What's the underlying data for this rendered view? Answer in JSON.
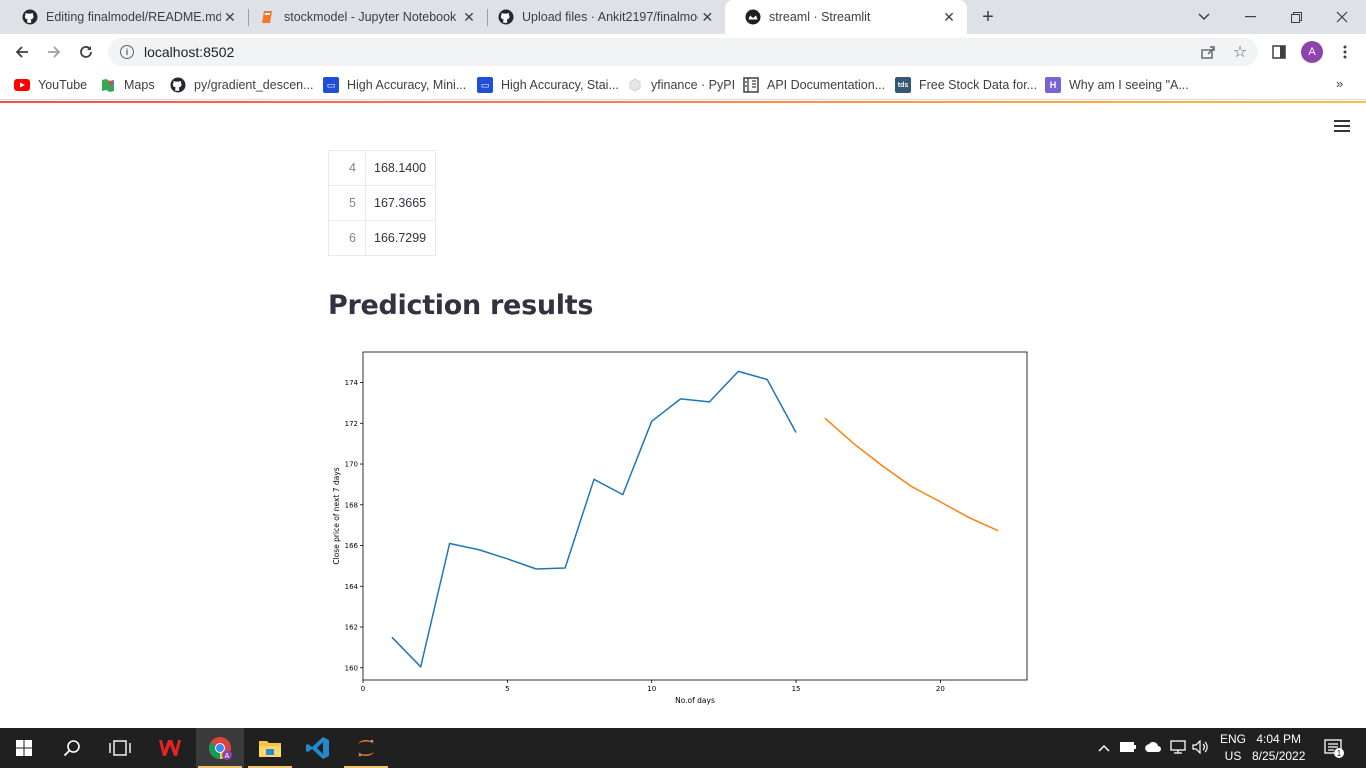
{
  "browser": {
    "tabs": [
      {
        "title": "Editing finalmodel/README.md at",
        "icon": "github-icon",
        "active": false
      },
      {
        "title": "stockmodel - Jupyter Notebook",
        "icon": "jupyter-icon",
        "active": false
      },
      {
        "title": "Upload files · Ankit2197/finalmod",
        "icon": "github-icon",
        "active": false
      },
      {
        "title": "streaml · Streamlit",
        "icon": "streamlit-icon",
        "active": true
      }
    ],
    "url": "localhost:8502",
    "avatar_letter": "A",
    "bookmarks": [
      {
        "label": "YouTube",
        "icon": "youtube-icon"
      },
      {
        "label": "Maps",
        "icon": "maps-icon"
      },
      {
        "label": "py/gradient_descen...",
        "icon": "github-icon"
      },
      {
        "label": "High Accuracy, Mini...",
        "icon": "bookmark-site-icon"
      },
      {
        "label": "High Accuracy, Stai...",
        "icon": "bookmark-site-icon"
      },
      {
        "label": "yfinance · PyPI",
        "icon": "pypi-icon"
      },
      {
        "label": "API Documentation...",
        "icon": "docs-icon"
      },
      {
        "label": "Free Stock Data for...",
        "icon": "tds-icon"
      },
      {
        "label": "Why am I seeing \"A...",
        "icon": "heroku-icon"
      }
    ],
    "bookmark_badges": {
      "tds": "tds"
    },
    "more_bookmarks": "»"
  },
  "app": {
    "table_rows": [
      {
        "index": "4",
        "value": "168.1400"
      },
      {
        "index": "5",
        "value": "167.3665"
      },
      {
        "index": "6",
        "value": "166.7299"
      }
    ],
    "heading": "Prediction results"
  },
  "chart_data": {
    "type": "line",
    "xlabel": "No.of days",
    "ylabel": "Close price of next 7 days",
    "xlim": [
      0,
      23
    ],
    "ylim": [
      159.4,
      175.5
    ],
    "xticks": [
      0,
      5,
      10,
      15,
      20
    ],
    "yticks": [
      160,
      162,
      164,
      166,
      168,
      170,
      172,
      174
    ],
    "series": [
      {
        "color": "#1f77b4",
        "x": [
          1,
          2,
          3,
          4,
          5,
          6,
          7,
          8,
          9,
          10,
          11,
          12,
          13,
          14,
          15
        ],
        "values": [
          161.5,
          160.05,
          166.1,
          165.8,
          165.35,
          164.85,
          164.9,
          169.25,
          168.5,
          172.1,
          173.2,
          173.05,
          174.55,
          174.15,
          171.55
        ]
      },
      {
        "color": "#ff7f0e",
        "x": [
          16,
          17,
          18,
          19,
          20,
          21,
          22
        ],
        "values": [
          172.25,
          171.0,
          169.9,
          168.9,
          168.14,
          167.3665,
          166.7299
        ]
      }
    ]
  },
  "taskbar": {
    "apps": [
      "windows-start-icon",
      "search-icon",
      "task-view-icon",
      "wps-office-icon",
      "chrome-icon",
      "file-explorer-icon",
      "vscode-icon",
      "jupyter-icon"
    ],
    "lang_line1": "ENG",
    "lang_line2": "US",
    "time": "4:04 PM",
    "date": "8/25/2022",
    "notification_count": "1"
  }
}
